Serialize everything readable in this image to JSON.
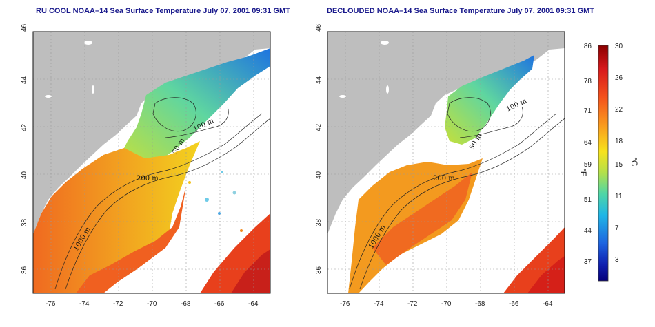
{
  "panels": [
    {
      "title": "RU COOL NOAA–14 Sea Surface Temperature July 07, 2001 09:31 GMT"
    },
    {
      "title": "DECLOUDED NOAA–14 Sea Surface Temperature July 07, 2001 09:31 GMT"
    }
  ],
  "axes": {
    "lon_ticks": [
      "-76",
      "-74",
      "-72",
      "-70",
      "-68",
      "-66",
      "-64"
    ],
    "lat_ticks": [
      "46",
      "44",
      "42",
      "40",
      "38",
      "36"
    ],
    "lon_range": [
      -77,
      -63
    ],
    "lat_range": [
      35,
      46
    ]
  },
  "contour_labels": [
    "100 m",
    "50 m",
    "200 m",
    "50 m",
    "1000 m"
  ],
  "colorbar": {
    "f_ticks": [
      "86",
      "78",
      "71",
      "64",
      "59",
      "51",
      "44",
      "37"
    ],
    "c_ticks": [
      "30",
      "26",
      "22",
      "18",
      "15",
      "11",
      "7",
      "3"
    ],
    "f_unit": "°F",
    "c_unit": "°C",
    "colors": [
      "#8b0000",
      "#d7191c",
      "#f4521c",
      "#f99b1f",
      "#f7e21c",
      "#b4e04a",
      "#4fd6a6",
      "#1fb6e6",
      "#1e64e0",
      "#1020b0",
      "#06007a"
    ]
  }
}
